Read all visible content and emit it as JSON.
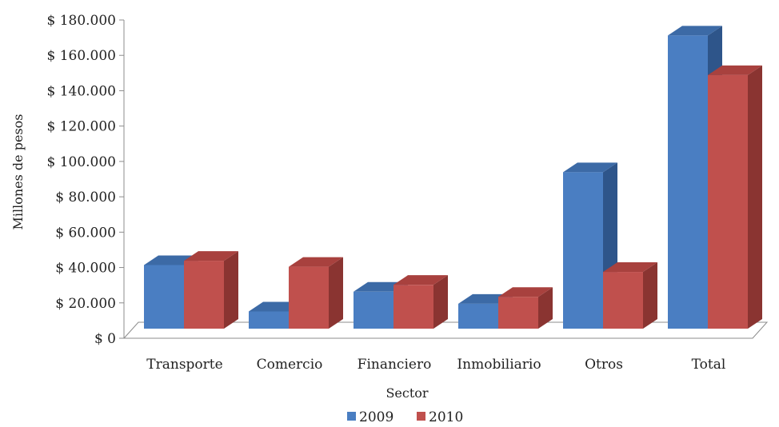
{
  "chart_data": {
    "type": "bar",
    "style": "3d-clustered-column",
    "title": "",
    "xlabel": "Sector",
    "ylabel": "Millones de pesos",
    "categories": [
      "Transporte",
      "Comercio",
      "Financiero",
      "Inmobiliario",
      "Otros",
      "Total"
    ],
    "series": [
      {
        "name": "2009",
        "values": [
          37000,
          10000,
          21500,
          14500,
          91000,
          170500
        ]
      },
      {
        "name": "2010",
        "values": [
          39500,
          36000,
          25500,
          18500,
          33000,
          147500
        ]
      }
    ],
    "ylim": [
      0,
      180000
    ],
    "yticks": [
      {
        "value": 0,
        "label": "$ 0"
      },
      {
        "value": 20000,
        "label": "$ 20.000"
      },
      {
        "value": 40000,
        "label": "$ 40.000"
      },
      {
        "value": 60000,
        "label": "$ 60.000"
      },
      {
        "value": 80000,
        "label": "$ 80.000"
      },
      {
        "value": 100000,
        "label": "$ 100.000"
      },
      {
        "value": 120000,
        "label": "$ 120.000"
      },
      {
        "value": 140000,
        "label": "$ 140.000"
      },
      {
        "value": 160000,
        "label": "$ 160.000"
      },
      {
        "value": 180000,
        "label": "$ 180.000"
      }
    ],
    "grid": false,
    "legend": "bottom",
    "colors": {
      "2009": {
        "front": "#4a7ec2",
        "side": "#2e558a",
        "top": "#3c6aa6"
      },
      "2010": {
        "front": "#c0504d",
        "side": "#8a3431",
        "top": "#a8413e"
      }
    }
  }
}
